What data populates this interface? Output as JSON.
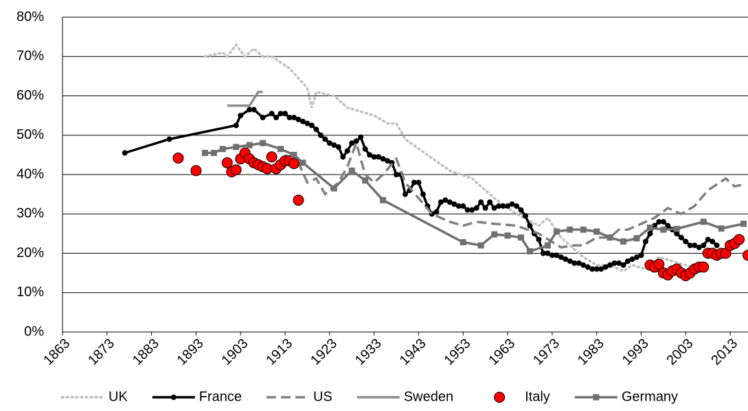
{
  "chart_data": {
    "type": "line",
    "xlim": [
      1863,
      2017
    ],
    "xticks": [
      1863,
      1873,
      1883,
      1893,
      1903,
      1913,
      1923,
      1933,
      1943,
      1953,
      1963,
      1973,
      1983,
      1993,
      2003,
      2013
    ],
    "ylim": [
      0,
      80
    ],
    "yticks": [
      {
        "value": 0,
        "label": "0%"
      },
      {
        "value": 10,
        "label": "10%"
      },
      {
        "value": 20,
        "label": "20%"
      },
      {
        "value": 30,
        "label": "30%"
      },
      {
        "value": 40,
        "label": "40%"
      },
      {
        "value": 50,
        "label": "50%"
      },
      {
        "value": 60,
        "label": "60%"
      },
      {
        "value": 70,
        "label": "70%"
      },
      {
        "value": 80,
        "label": "80%"
      }
    ],
    "grid": true,
    "legend": "bottom",
    "series": [
      {
        "name": "UK",
        "color": "#bfbfbf",
        "style": "dotted",
        "marker": "none",
        "x": [
          1895,
          1899,
          1900,
          1902,
          1904,
          1906,
          1908,
          1910,
          1912,
          1914,
          1918,
          1919,
          1920,
          1924,
          1927,
          1930,
          1933,
          1936,
          1938,
          1940,
          1945,
          1950,
          1955,
          1960,
          1965,
          1970,
          1972,
          1975,
          1978,
          1980,
          1983,
          1986,
          1989,
          1991,
          1994,
          1997,
          2000,
          2003,
          2005
        ],
        "values": [
          70,
          71,
          70,
          73,
          70,
          72,
          70,
          70,
          68.5,
          67,
          62,
          57,
          61,
          60,
          57,
          56,
          55,
          53,
          53,
          49,
          45,
          41,
          39,
          34,
          30,
          27,
          29,
          24,
          21,
          19,
          17,
          17,
          15.5,
          17,
          16,
          19,
          18,
          17,
          16
        ]
      },
      {
        "name": "France",
        "color": "#000000",
        "style": "solid",
        "marker": "circle",
        "x": [
          1877,
          1887,
          1902,
          1903,
          1905,
          1906,
          1908,
          1910,
          1911,
          1912,
          1913,
          1914,
          1915,
          1916,
          1917,
          1918,
          1919,
          1920,
          1921,
          1922,
          1923,
          1924,
          1925,
          1926,
          1927,
          1928,
          1929,
          1930,
          1931,
          1932,
          1933,
          1934,
          1935,
          1936,
          1937,
          1938,
          1939,
          1940,
          1941,
          1942,
          1943,
          1944,
          1945,
          1946,
          1947,
          1948,
          1949,
          1950,
          1951,
          1952,
          1953,
          1954,
          1955,
          1956,
          1957,
          1958,
          1959,
          1960,
          1961,
          1962,
          1963,
          1964,
          1965,
          1966,
          1967,
          1968,
          1969,
          1970,
          1971,
          1972,
          1973,
          1974,
          1975,
          1976,
          1977,
          1978,
          1979,
          1980,
          1981,
          1982,
          1983,
          1984,
          1985,
          1986,
          1987,
          1988,
          1989,
          1990,
          1991,
          1992,
          1993,
          1994,
          1995,
          1996,
          1997,
          1998,
          1999,
          2000,
          2001,
          2002,
          2003,
          2004,
          2005,
          2006,
          2007,
          2008,
          2009,
          2010
        ],
        "values": [
          45.5,
          49,
          52.5,
          55,
          56.5,
          56.5,
          54.5,
          55.5,
          54.5,
          55.5,
          55.5,
          54.5,
          54.5,
          54,
          53.5,
          53,
          52.5,
          51.5,
          50,
          49,
          48,
          47.5,
          47,
          44.5,
          46,
          48,
          48.5,
          49.5,
          46.5,
          45,
          44.5,
          44.5,
          44,
          43.5,
          43,
          40,
          40,
          35,
          36,
          38,
          38,
          35,
          32,
          30,
          30.5,
          33,
          33.5,
          33,
          32.5,
          32,
          32,
          31,
          31,
          31.5,
          33,
          31.5,
          33,
          31.5,
          32,
          32,
          32,
          32.5,
          32,
          31,
          29.5,
          27,
          25,
          23.5,
          20,
          20,
          19.5,
          19.5,
          19,
          18.5,
          18,
          17.5,
          17.5,
          17,
          16.5,
          16,
          16,
          16,
          16.5,
          17,
          17.5,
          17.5,
          17,
          18,
          18.5,
          19,
          19.5,
          23,
          25,
          27,
          28,
          28,
          27,
          26,
          25,
          24,
          23,
          22,
          22,
          21.5,
          22,
          23.5,
          23,
          22
        ]
      },
      {
        "name": "US",
        "color": "#808080",
        "style": "dashed",
        "marker": "none",
        "x": [
          1913,
          1916,
          1918,
          1920,
          1922,
          1925,
          1927,
          1929,
          1931,
          1933,
          1935,
          1938,
          1940,
          1943,
          1946,
          1950,
          1953,
          1956,
          1960,
          1965,
          1970,
          1975,
          1978,
          1980,
          1983,
          1986,
          1988,
          1990,
          1993,
          1996,
          1999,
          2002,
          2005,
          2008,
          2012,
          2014,
          2016
        ],
        "values": [
          45,
          43,
          38,
          39,
          35,
          38,
          42,
          48,
          40,
          38,
          40,
          44,
          38,
          34,
          30,
          28,
          27,
          28,
          27.5,
          27,
          25,
          21.5,
          22,
          22,
          24,
          24,
          26,
          26,
          27.5,
          29,
          31.5,
          30,
          32,
          36,
          39,
          37,
          37.5
        ]
      },
      {
        "name": "Sweden",
        "color": "#8c8c8c",
        "style": "solid",
        "marker": "none",
        "x": [
          1900,
          1905,
          1907,
          1908
        ],
        "values": [
          57.5,
          57.5,
          61,
          61
        ]
      },
      {
        "name": "Italy",
        "color": "#ff0000",
        "style": "none",
        "marker": "bigcircle",
        "x": [
          1889,
          1893,
          1900,
          1901,
          1902,
          1903,
          1904,
          1905,
          1906,
          1907,
          1908,
          1909,
          1910,
          1911,
          1912,
          1913,
          1914,
          1915,
          1916,
          1995,
          1996,
          1997,
          1998,
          1999,
          2000,
          2001,
          2002,
          2003,
          2004,
          2005,
          2006,
          2007,
          2008,
          2009,
          2010,
          2011,
          2012,
          2013,
          2014,
          2015,
          2017
        ],
        "values": [
          44.2,
          41,
          43,
          40.7,
          41.2,
          44,
          45.5,
          44,
          43,
          42.5,
          42,
          41.5,
          44.5,
          41.5,
          42.5,
          43.5,
          43.5,
          42.8,
          33.5,
          17,
          16.5,
          17.2,
          15,
          14.5,
          15.5,
          16,
          15,
          14.3,
          15,
          16,
          16.5,
          16.5,
          20,
          20,
          19.5,
          20,
          20,
          22,
          22.5,
          23.5,
          19.5
        ]
      },
      {
        "name": "Germany",
        "color": "#707070",
        "style": "solid",
        "marker": "square",
        "x": [
          1895,
          1897,
          1899,
          1902,
          1905,
          1908,
          1912,
          1915,
          1917,
          1924,
          1928,
          1931,
          1935,
          1953,
          1957,
          1960,
          1963,
          1966,
          1968,
          1972,
          1974,
          1977,
          1980,
          1983,
          1986,
          1989,
          1992,
          1995,
          1998,
          2001,
          2007,
          2011,
          2016
        ],
        "values": [
          45.5,
          45.5,
          46.5,
          47,
          47.5,
          48,
          46.5,
          45,
          43,
          36.5,
          41,
          38.5,
          33.5,
          22.8,
          22,
          24.8,
          24.5,
          24,
          20.5,
          22,
          25.5,
          26,
          26,
          25.5,
          24,
          23,
          23.8,
          26.5,
          26,
          26.2,
          28,
          26.3,
          27.5
        ]
      }
    ]
  }
}
